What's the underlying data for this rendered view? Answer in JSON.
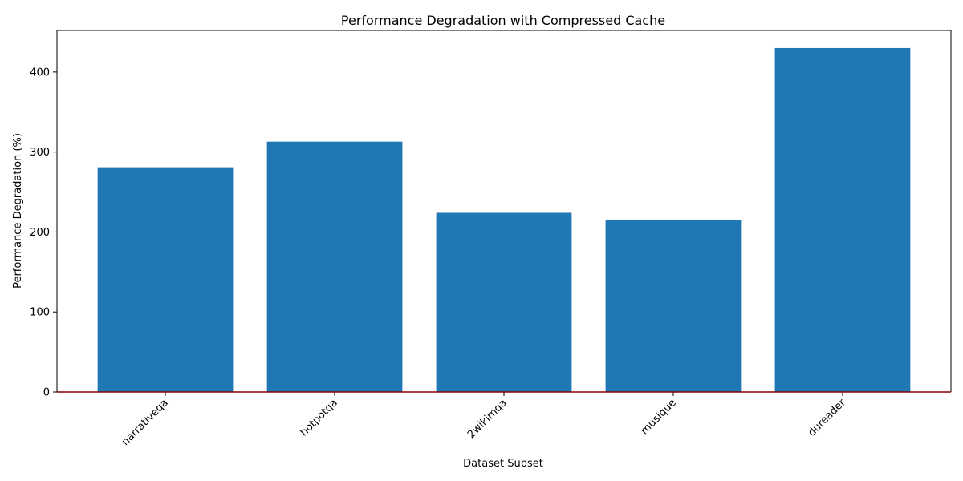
{
  "chart_data": {
    "type": "bar",
    "title": "Performance Degradation with Compressed Cache",
    "xlabel": "Dataset Subset",
    "ylabel": "Performance Degradation (%)",
    "categories": [
      "narrativeqa",
      "hotpotqa",
      "2wikimqa",
      "musique",
      "dureader"
    ],
    "values": [
      281,
      313,
      224,
      215,
      430
    ],
    "ylim": [
      0,
      452
    ],
    "yticks": [
      0,
      100,
      200,
      300,
      400
    ],
    "grid": false,
    "legend": "none",
    "bar_color": "#1f77b4",
    "reference_line": {
      "y": 0,
      "color": "#8b0000"
    },
    "x_tick_rotation": 45
  }
}
